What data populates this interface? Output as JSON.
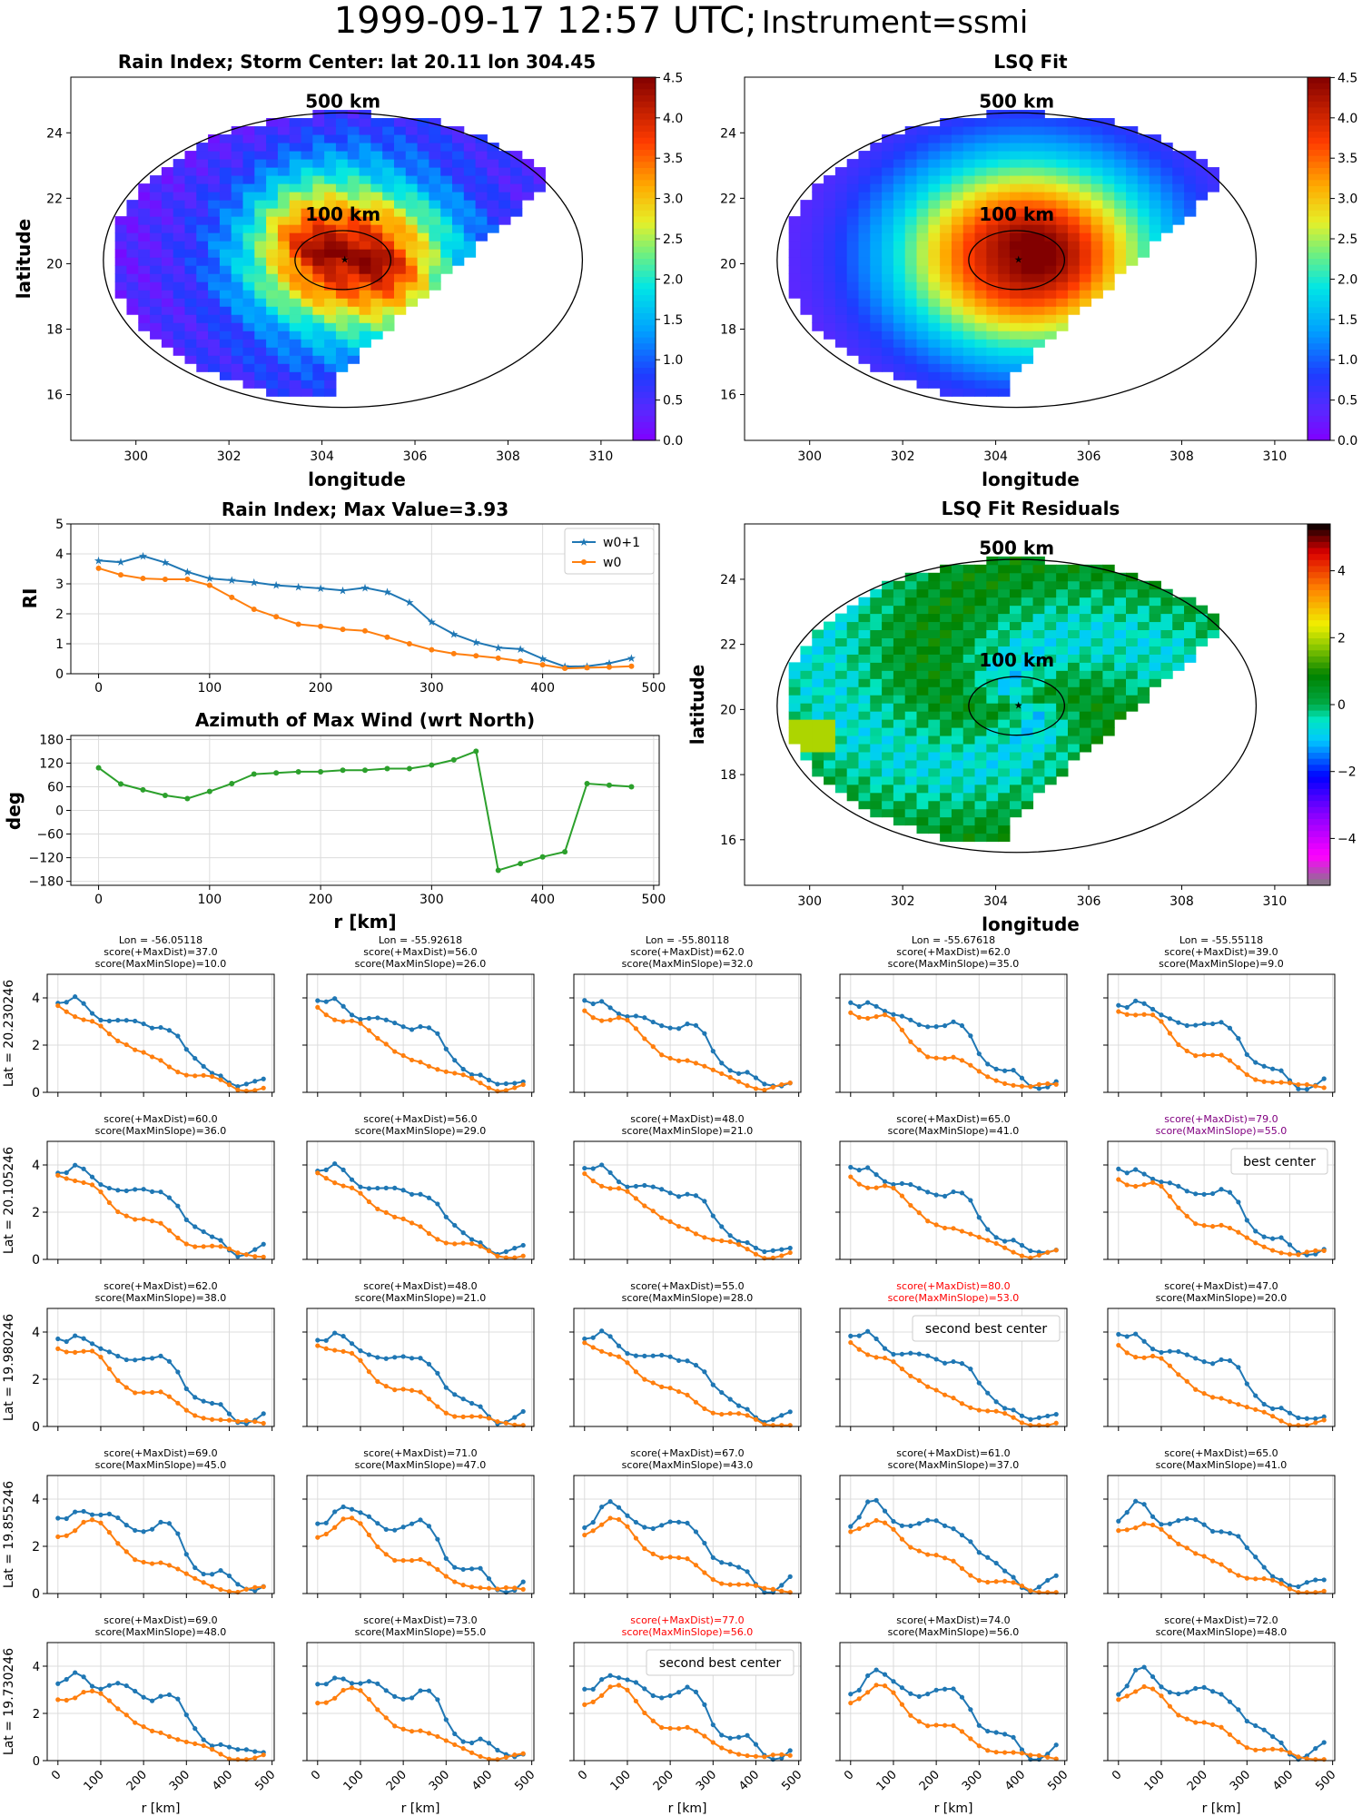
{
  "suptitle": {
    "main": "1999-09-17 12:57 UTC;",
    "sub": "Instrument=ssmi"
  },
  "maps": {
    "rain": {
      "title": "Rain Index; Storm Center: lat 20.11 lon 304.45",
      "xlabel": "longitude",
      "ylabel": "latitude",
      "xticks": [
        "300",
        "302",
        "304",
        "306",
        "308",
        "310"
      ],
      "yticks": [
        "16",
        "18",
        "20",
        "22",
        "24"
      ],
      "circle_labels": [
        "500 km",
        "100 km"
      ],
      "colorbar_ticks": [
        "0.0",
        "0.5",
        "1.0",
        "1.5",
        "2.0",
        "2.5",
        "3.0",
        "3.5",
        "4.0",
        "4.5"
      ]
    },
    "lsq": {
      "title": "LSQ Fit",
      "xlabel": "longitude",
      "xticks": [
        "300",
        "302",
        "304",
        "306",
        "308",
        "310"
      ],
      "yticks": [
        "16",
        "18",
        "20",
        "22",
        "24"
      ],
      "circle_labels": [
        "500 km",
        "100 km"
      ],
      "colorbar_ticks": [
        "0.0",
        "0.5",
        "1.0",
        "1.5",
        "2.0",
        "2.5",
        "3.0",
        "3.5",
        "4.0",
        "4.5"
      ]
    },
    "resid": {
      "title": "LSQ Fit Residuals",
      "xlabel": "longitude",
      "ylabel": "latitude",
      "xticks": [
        "300",
        "302",
        "304",
        "306",
        "308",
        "310"
      ],
      "yticks": [
        "16",
        "18",
        "20",
        "22",
        "24"
      ],
      "circle_labels": [
        "500 km",
        "100 km"
      ],
      "colorbar_ticks": [
        "4",
        "2",
        "0",
        "−2",
        "−4"
      ]
    }
  },
  "chart_data": [
    {
      "type": "line",
      "title": "Rain Index; Max Value=3.93",
      "ylabel": "RI",
      "x": [
        0,
        20,
        40,
        60,
        80,
        100,
        120,
        140,
        160,
        180,
        200,
        220,
        240,
        260,
        280,
        300,
        320,
        340,
        360,
        380,
        400,
        420,
        440,
        460,
        480
      ],
      "xticks": [
        "0",
        "100",
        "200",
        "300",
        "400",
        "500"
      ],
      "yticks": [
        "0",
        "1",
        "2",
        "3",
        "4",
        "5"
      ],
      "ylim": [
        0,
        5
      ],
      "legend": "top-right",
      "series": [
        {
          "name": "w0+1",
          "color": "#1f77b4",
          "marker": "star",
          "values": [
            3.78,
            3.72,
            3.93,
            3.71,
            3.4,
            3.18,
            3.12,
            3.05,
            2.95,
            2.9,
            2.85,
            2.78,
            2.87,
            2.72,
            2.38,
            1.72,
            1.32,
            1.05,
            0.87,
            0.82,
            0.5,
            0.24,
            0.25,
            0.35,
            0.52
          ]
        },
        {
          "name": "w0",
          "color": "#ff7f0e",
          "marker": "dot",
          "values": [
            3.52,
            3.3,
            3.18,
            3.15,
            3.15,
            2.95,
            2.55,
            2.15,
            1.9,
            1.65,
            1.58,
            1.48,
            1.43,
            1.22,
            1.0,
            0.8,
            0.67,
            0.6,
            0.52,
            0.42,
            0.3,
            0.18,
            0.2,
            0.22,
            0.25
          ]
        }
      ]
    },
    {
      "type": "line",
      "title": "Azimuth of Max Wind (wrt North)",
      "xlabel": "r [km]",
      "ylabel": "deg",
      "x": [
        0,
        20,
        40,
        60,
        80,
        100,
        120,
        140,
        160,
        180,
        200,
        220,
        240,
        260,
        280,
        300,
        320,
        340,
        360,
        380,
        400,
        420,
        440,
        460,
        480
      ],
      "xticks": [
        "0",
        "100",
        "200",
        "300",
        "400",
        "500"
      ],
      "yticks": [
        "180",
        "120",
        "60",
        "0",
        "−60",
        "−120",
        "−180"
      ],
      "ylim": [
        -180,
        180
      ],
      "series": [
        {
          "color": "#2ca02c",
          "values": [
            108,
            67,
            52,
            38,
            30,
            48,
            68,
            92,
            95,
            98,
            98,
            102,
            102,
            106,
            106,
            115,
            128,
            150,
            -152,
            -135,
            -118,
            -105,
            68,
            64,
            60
          ]
        }
      ]
    }
  ],
  "grid": {
    "col_titles": [
      "Lon = -56.05118",
      "Lon = -55.92618",
      "Lon = -55.80118",
      "Lon = -55.67618",
      "Lon = -55.55118"
    ],
    "row_labels": [
      "Lat = 20.230246",
      "Lat = 20.105246",
      "Lat = 19.980246",
      "Lat = 19.855246",
      "Lat = 19.730246"
    ],
    "xlabel": "r [km]",
    "xticks": [
      "0",
      "100",
      "200",
      "300",
      "400",
      "500"
    ],
    "yticks": [
      "0",
      "2",
      "4"
    ],
    "scores": [
      [
        [
          "score(+MaxDist)=37.0",
          "score(MaxMinSlope)=10.0"
        ],
        [
          "score(+MaxDist)=56.0",
          "score(MaxMinSlope)=26.0"
        ],
        [
          "score(+MaxDist)=62.0",
          "score(MaxMinSlope)=32.0"
        ],
        [
          "score(+MaxDist)=62.0",
          "score(MaxMinSlope)=35.0"
        ],
        [
          "score(+MaxDist)=39.0",
          "score(MaxMinSlope)=9.0"
        ]
      ],
      [
        [
          "score(+MaxDist)=60.0",
          "score(MaxMinSlope)=36.0"
        ],
        [
          "score(+MaxDist)=56.0",
          "score(MaxMinSlope)=29.0"
        ],
        [
          "score(+MaxDist)=48.0",
          "score(MaxMinSlope)=21.0"
        ],
        [
          "score(+MaxDist)=65.0",
          "score(MaxMinSlope)=41.0"
        ],
        [
          "score(+MaxDist)=79.0",
          "score(MaxMinSlope)=55.0"
        ]
      ],
      [
        [
          "score(+MaxDist)=62.0",
          "score(MaxMinSlope)=38.0"
        ],
        [
          "score(+MaxDist)=48.0",
          "score(MaxMinSlope)=21.0"
        ],
        [
          "score(+MaxDist)=55.0",
          "score(MaxMinSlope)=28.0"
        ],
        [
          "score(+MaxDist)=80.0",
          "score(MaxMinSlope)=53.0"
        ],
        [
          "score(+MaxDist)=47.0",
          "score(MaxMinSlope)=20.0"
        ]
      ],
      [
        [
          "score(+MaxDist)=69.0",
          "score(MaxMinSlope)=45.0"
        ],
        [
          "score(+MaxDist)=71.0",
          "score(MaxMinSlope)=47.0"
        ],
        [
          "score(+MaxDist)=67.0",
          "score(MaxMinSlope)=43.0"
        ],
        [
          "score(+MaxDist)=61.0",
          "score(MaxMinSlope)=37.0"
        ],
        [
          "score(+MaxDist)=65.0",
          "score(MaxMinSlope)=41.0"
        ]
      ],
      [
        [
          "score(+MaxDist)=69.0",
          "score(MaxMinSlope)=48.0"
        ],
        [
          "score(+MaxDist)=73.0",
          "score(MaxMinSlope)=55.0"
        ],
        [
          "score(+MaxDist)=77.0",
          "score(MaxMinSlope)=56.0"
        ],
        [
          "score(+MaxDist)=74.0",
          "score(MaxMinSlope)=56.0"
        ],
        [
          "score(+MaxDist)=72.0",
          "score(MaxMinSlope)=48.0"
        ]
      ]
    ],
    "highlights": [
      {
        "row": 1,
        "col": 4,
        "color": "#800080",
        "legend": "best center"
      },
      {
        "row": 2,
        "col": 3,
        "color": "#ff0000",
        "legend": "second best center"
      },
      {
        "row": 4,
        "col": 2,
        "color": "#ff0000",
        "legend": "second best center"
      }
    ]
  },
  "colors": {
    "w0p1": "#1f77b4",
    "w0": "#ff7f0e",
    "azimuth": "#2ca02c"
  }
}
